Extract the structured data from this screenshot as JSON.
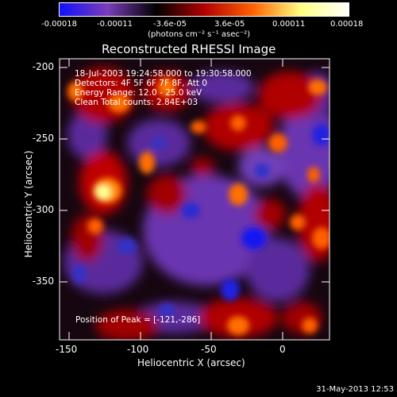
{
  "colorbar": {
    "tick_labels": [
      "-0.00018",
      "-0.00011",
      "-3.6e-05",
      "3.6e-05",
      "0.00011",
      "0.00018"
    ],
    "units_label": "(photons cm⁻² s⁻¹ asec⁻²)",
    "colors": [
      "#1010ff",
      "#7a3db8",
      "#000000",
      "#b00000",
      "#ff6000",
      "#ffff80",
      "#ffffff"
    ]
  },
  "title": "Reconstructed RHESSI Image",
  "info": {
    "time_range": "18-Jul-2003 19:24:58.000 to 19:30:58.000",
    "detectors": "Detectors: 4F 5F 6F 7F 8F, Att 0",
    "energy_range": "Energy Range: 12.0 - 25.0 keV",
    "clean_counts": "Clean     Total counts: 2.84E+03"
  },
  "peak_label": "Position of Peak = [-121,-286]",
  "axes": {
    "xlabel": "Heliocentric X (arcsec)",
    "ylabel": "Heliocentric Y (arcsec)",
    "x_ticks": [
      "-150",
      "-100",
      "-50",
      "0"
    ],
    "y_ticks": [
      "-200",
      "-250",
      "-300",
      "-350"
    ],
    "x_range": [
      -155,
      38
    ],
    "y_range": [
      -194,
      -390
    ]
  },
  "footer_timestamp": "31-May-2013 12:53"
}
